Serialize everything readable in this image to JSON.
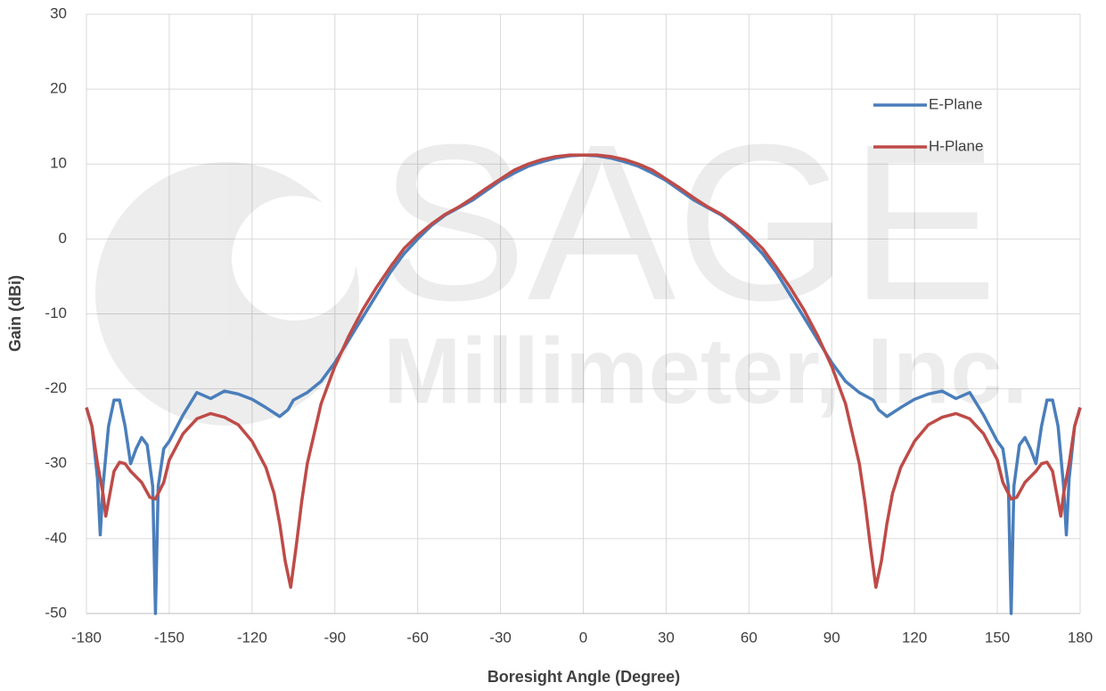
{
  "chart_data": {
    "type": "line",
    "x_label": "Boresight Angle (Degree)",
    "y_label": "Gain (dBi)",
    "xlim": [
      -180,
      180
    ],
    "ylim": [
      -50,
      30
    ],
    "xticks": [
      -180,
      -150,
      -120,
      -90,
      -60,
      -30,
      0,
      30,
      60,
      90,
      120,
      150,
      180
    ],
    "yticks": [
      -50,
      -40,
      -30,
      -20,
      -10,
      0,
      10,
      20,
      30
    ],
    "grid": true,
    "legend": "upper right",
    "watermark": [
      "SAGE",
      "Millimeter, Inc."
    ],
    "series": [
      {
        "name": "E-Plane",
        "color": "#4a7ebb",
        "x": [
          -180,
          -178,
          -176,
          -175,
          -174,
          -172,
          -170,
          -168,
          -166,
          -164,
          -162,
          -160,
          -158,
          -156,
          -155,
          -154,
          -152,
          -150,
          -145,
          -140,
          -135,
          -130,
          -125,
          -120,
          -115,
          -110,
          -107,
          -105,
          -100,
          -95,
          -90,
          -85,
          -80,
          -75,
          -70,
          -65,
          -60,
          -55,
          -50,
          -45,
          -40,
          -35,
          -30,
          -25,
          -20,
          -15,
          -10,
          -5,
          0,
          5,
          10,
          15,
          20,
          25,
          30,
          35,
          40,
          45,
          50,
          55,
          60,
          65,
          70,
          75,
          80,
          85,
          90,
          95,
          100,
          105,
          107,
          110,
          115,
          120,
          125,
          130,
          135,
          140,
          145,
          150,
          152,
          154,
          155,
          156,
          158,
          160,
          162,
          164,
          166,
          168,
          170,
          172,
          174,
          175,
          176,
          178,
          180
        ],
        "values": [
          -22.5,
          -25,
          -32,
          -39.5,
          -33,
          -25,
          -21.5,
          -21.5,
          -25,
          -30,
          -28,
          -26.5,
          -27.5,
          -33,
          -50,
          -33,
          -28,
          -27,
          -23.5,
          -20.5,
          -21.3,
          -20.3,
          -20.7,
          -21.4,
          -22.5,
          -23.7,
          -22.8,
          -21.5,
          -20.5,
          -19,
          -16.5,
          -13.5,
          -10.5,
          -7.5,
          -4.5,
          -2,
          0,
          1.8,
          3.2,
          4.2,
          5.2,
          6.5,
          7.8,
          8.8,
          9.7,
          10.3,
          10.8,
          11.1,
          11.2,
          11.1,
          10.8,
          10.3,
          9.7,
          8.8,
          7.8,
          6.5,
          5.2,
          4.2,
          3.2,
          1.8,
          0,
          -2,
          -4.5,
          -7.5,
          -10.5,
          -13.5,
          -16.5,
          -19,
          -20.5,
          -21.5,
          -22.8,
          -23.7,
          -22.5,
          -21.4,
          -20.7,
          -20.3,
          -21.3,
          -20.5,
          -23.5,
          -27,
          -28,
          -33,
          -50,
          -33,
          -27.5,
          -26.5,
          -28,
          -30,
          -25,
          -21.5,
          -21.5,
          -25,
          -33,
          -39.5,
          -32,
          -25,
          -22.5
        ]
      },
      {
        "name": "H-Plane",
        "color": "#be4b48",
        "x": [
          -180,
          -178,
          -176,
          -174,
          -173,
          -172,
          -170,
          -168,
          -166,
          -164,
          -160,
          -157,
          -155,
          -152,
          -150,
          -145,
          -140,
          -135,
          -130,
          -125,
          -120,
          -115,
          -112,
          -110,
          -108,
          -106,
          -104,
          -102,
          -100,
          -95,
          -90,
          -85,
          -80,
          -75,
          -70,
          -65,
          -60,
          -55,
          -50,
          -45,
          -40,
          -35,
          -30,
          -25,
          -20,
          -15,
          -10,
          -5,
          0,
          5,
          10,
          15,
          20,
          25,
          30,
          35,
          40,
          45,
          50,
          55,
          60,
          65,
          70,
          75,
          80,
          85,
          90,
          95,
          100,
          102,
          104,
          106,
          108,
          110,
          112,
          115,
          120,
          125,
          130,
          135,
          140,
          145,
          150,
          152,
          155,
          157,
          160,
          164,
          166,
          168,
          170,
          172,
          173,
          174,
          176,
          178,
          180
        ],
        "values": [
          -22.5,
          -25,
          -30,
          -34,
          -37,
          -35,
          -31,
          -29.8,
          -30,
          -31,
          -32.5,
          -34.5,
          -34.7,
          -32.5,
          -29.5,
          -26,
          -24,
          -23.3,
          -23.8,
          -24.8,
          -27,
          -30.5,
          -34,
          -38,
          -43,
          -46.5,
          -41,
          -35,
          -30,
          -22,
          -17,
          -13,
          -9.5,
          -6.5,
          -3.8,
          -1.3,
          0.5,
          2,
          3.3,
          4.3,
          5.5,
          6.8,
          8,
          9.2,
          10,
          10.6,
          11,
          11.2,
          11.2,
          11.2,
          11,
          10.6,
          10,
          9.2,
          8,
          6.8,
          5.5,
          4.3,
          3.3,
          2,
          0.5,
          -1.3,
          -3.8,
          -6.5,
          -9.5,
          -13,
          -17,
          -22,
          -30,
          -35,
          -41,
          -46.5,
          -43,
          -38,
          -34,
          -30.5,
          -27,
          -24.8,
          -23.8,
          -23.3,
          -24,
          -26,
          -29.5,
          -32.5,
          -34.7,
          -34.5,
          -32.5,
          -31,
          -30,
          -29.8,
          -31,
          -35,
          -37,
          -34,
          -30,
          -25,
          -22.5
        ]
      }
    ]
  }
}
